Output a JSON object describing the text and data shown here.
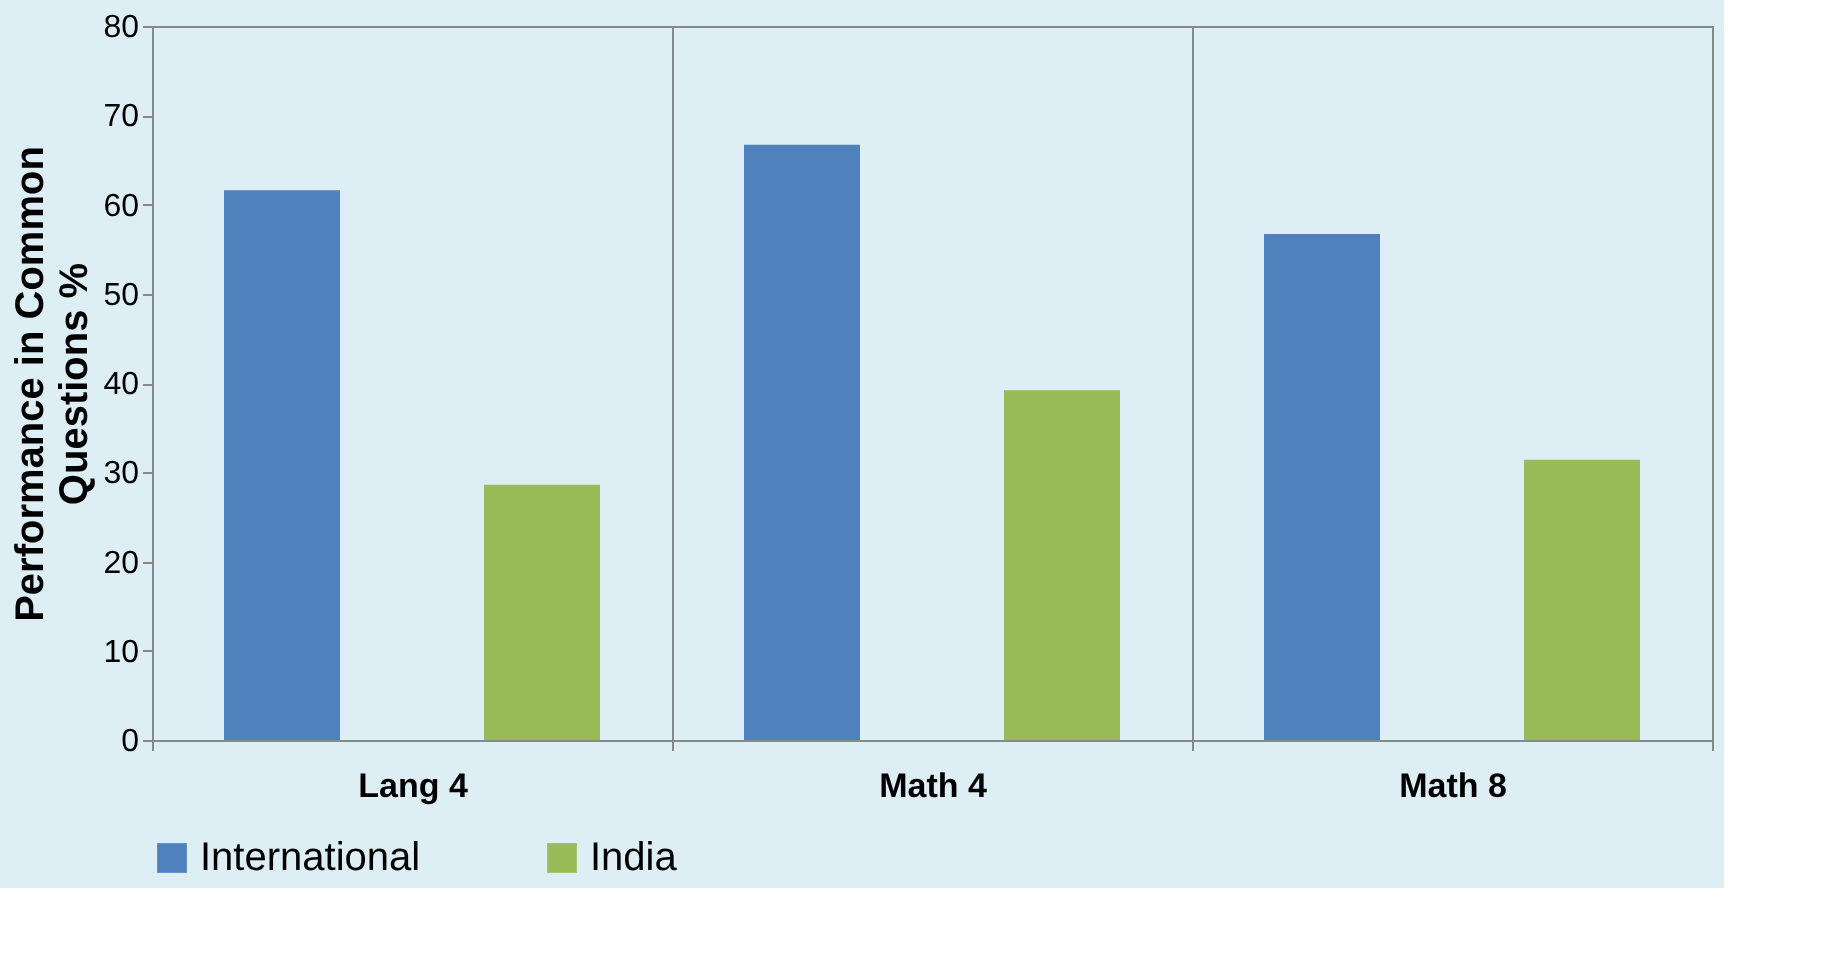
{
  "chart_data": {
    "type": "bar",
    "ylabel": "Performance in Common Questions %",
    "categories": [
      "Lang 4",
      "Math 4",
      "Math 8"
    ],
    "series": [
      {
        "name": "International",
        "color": "#4f81bd",
        "values": [
          61.6,
          66.7,
          56.7
        ]
      },
      {
        "name": "India",
        "color": "#9bbb59",
        "values": [
          28.6,
          39.2,
          31.4
        ]
      }
    ],
    "ylim": [
      0,
      80
    ],
    "yticks": [
      0,
      10,
      20,
      30,
      40,
      50,
      60,
      70,
      80
    ],
    "grid": "x",
    "legend": "bottom"
  }
}
